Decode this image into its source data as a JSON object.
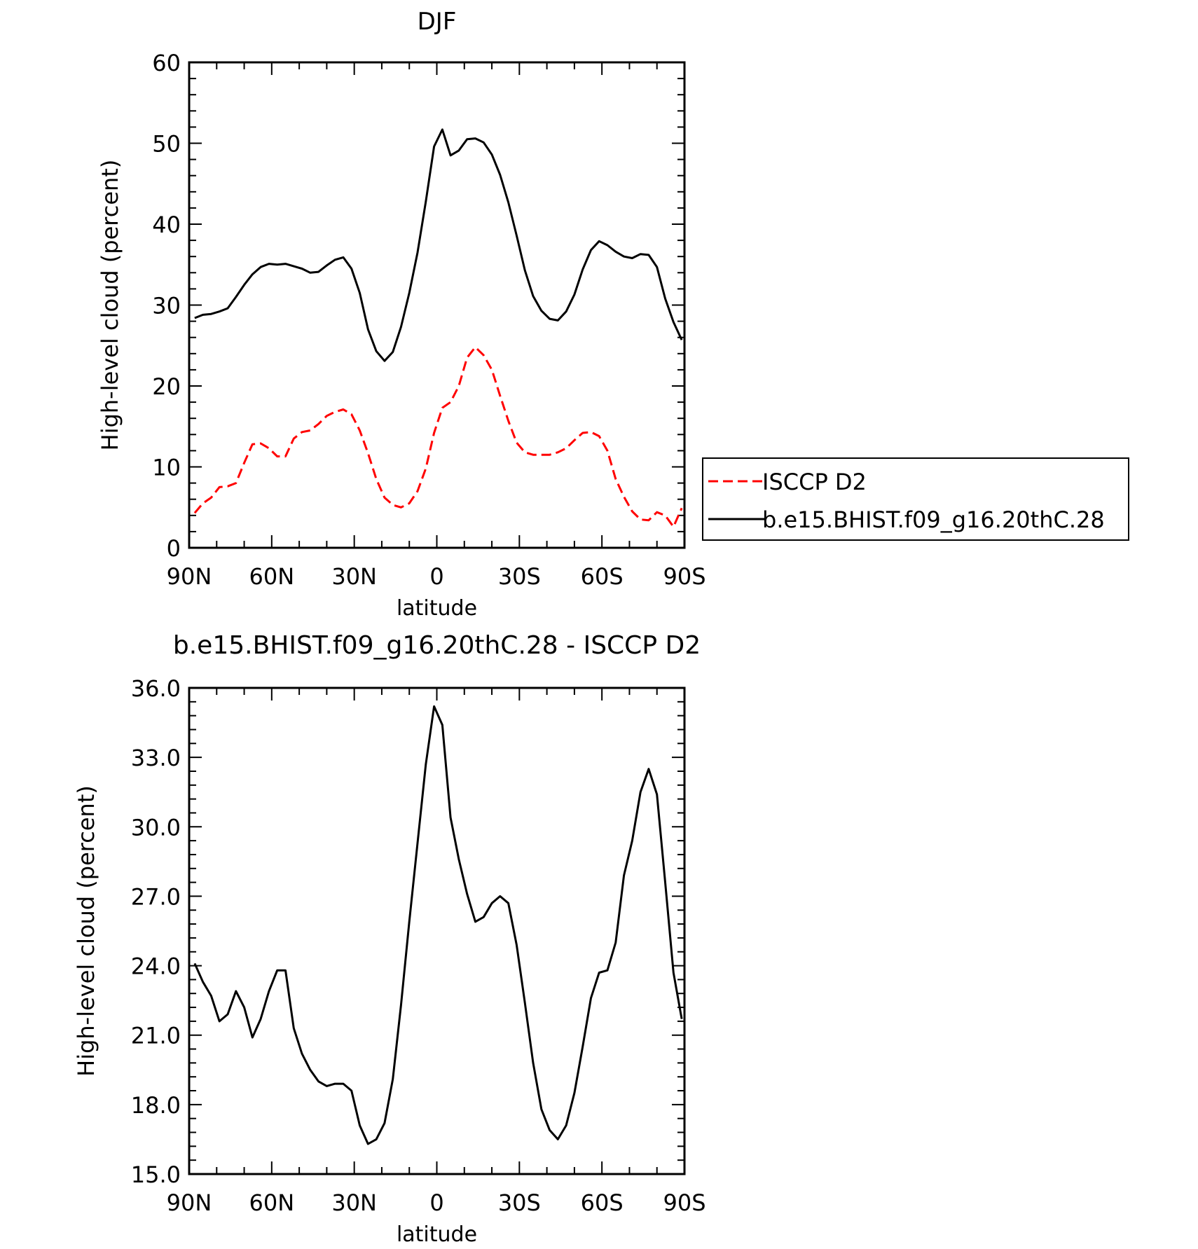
{
  "chart_data": [
    {
      "type": "line",
      "title": "DJF",
      "xlabel": "latitude",
      "ylabel": "High-level cloud (percent)",
      "xlim": [
        90,
        -90
      ],
      "ylim": [
        0,
        60
      ],
      "yticks": [
        0,
        10,
        20,
        30,
        40,
        50,
        60
      ],
      "ytick_labels": [
        "0",
        "10",
        "20",
        "30",
        "40",
        "50",
        "60"
      ],
      "xticks": [
        90,
        60,
        30,
        0,
        -30,
        -60,
        -90
      ],
      "xtick_labels": [
        "90N",
        "60N",
        "30N",
        "0",
        "30S",
        "60S",
        "90S"
      ],
      "grid": false,
      "legend_position": "right",
      "series": [
        {
          "name": "ISCCP D2",
          "color": "#ff0000",
          "dash": "dashed",
          "x": [
            88,
            85,
            82,
            79,
            76,
            73,
            70,
            67,
            64,
            61,
            58,
            55,
            52,
            49,
            46,
            43,
            40,
            37,
            34,
            31,
            28,
            25,
            22,
            19,
            16,
            13,
            10,
            7,
            4,
            1,
            -2,
            -5,
            -8,
            -11,
            -14,
            -17,
            -20,
            -23,
            -26,
            -29,
            -32,
            -35,
            -38,
            -41,
            -44,
            -47,
            -50,
            -53,
            -56,
            -59,
            -62,
            -65,
            -68,
            -71,
            -74,
            -77,
            -80,
            -83,
            -86,
            -89
          ],
          "y": [
            4.3,
            5.5,
            6.2,
            7.5,
            7.6,
            8.0,
            10.5,
            12.8,
            12.9,
            12.3,
            11.3,
            11.3,
            13.5,
            14.3,
            14.5,
            15.3,
            16.3,
            16.8,
            17.1,
            16.5,
            14.5,
            11.7,
            8.5,
            6.2,
            5.3,
            5.0,
            5.5,
            7.0,
            9.8,
            14.2,
            17.3,
            18.0,
            20.0,
            23.5,
            24.8,
            23.8,
            22.0,
            18.8,
            15.7,
            13.0,
            11.8,
            11.5,
            11.5,
            11.5,
            11.8,
            12.3,
            13.3,
            14.2,
            14.3,
            13.8,
            12.0,
            8.5,
            6.3,
            4.5,
            3.5,
            3.4,
            4.4,
            4.0,
            2.6,
            4.9
          ]
        },
        {
          "name": "b.e15.BHIST.f09_g16.20thC.28",
          "color": "#000000",
          "dash": "solid",
          "x": [
            88,
            85,
            82,
            79,
            76,
            73,
            70,
            67,
            64,
            61,
            58,
            55,
            52,
            49,
            46,
            43,
            40,
            37,
            34,
            31,
            28,
            25,
            22,
            19,
            16,
            13,
            10,
            7,
            4,
            1,
            -2,
            -5,
            -8,
            -11,
            -14,
            -17,
            -20,
            -23,
            -26,
            -29,
            -32,
            -35,
            -38,
            -41,
            -44,
            -47,
            -50,
            -53,
            -56,
            -59,
            -62,
            -65,
            -68,
            -71,
            -74,
            -77,
            -80,
            -83,
            -86,
            -89
          ],
          "y": [
            28.4,
            28.8,
            28.9,
            29.2,
            29.6,
            31.0,
            32.5,
            33.8,
            34.7,
            35.1,
            35.0,
            35.1,
            34.8,
            34.5,
            34.0,
            34.1,
            34.9,
            35.6,
            35.9,
            34.5,
            31.5,
            27.0,
            24.3,
            23.1,
            24.2,
            27.3,
            31.5,
            36.5,
            42.8,
            49.6,
            51.7,
            48.5,
            49.1,
            50.5,
            50.6,
            50.1,
            48.6,
            46.1,
            42.7,
            38.6,
            34.3,
            31.1,
            29.3,
            28.3,
            28.1,
            29.2,
            31.3,
            34.4,
            36.8,
            37.9,
            37.4,
            36.6,
            36.0,
            35.8,
            36.3,
            36.2,
            34.7,
            30.8,
            27.9,
            25.7
          ]
        }
      ]
    },
    {
      "type": "line",
      "title": "b.e15.BHIST.f09_g16.20thC.28 - ISCCP D2",
      "xlabel": "latitude",
      "ylabel": "High-level cloud (percent)",
      "xlim": [
        90,
        -90
      ],
      "ylim": [
        15,
        36
      ],
      "yticks": [
        15,
        18,
        21,
        24,
        27,
        30,
        33,
        36
      ],
      "ytick_labels": [
        "15.0",
        "18.0",
        "21.0",
        "24.0",
        "27.0",
        "30.0",
        "33.0",
        "36.0"
      ],
      "xticks": [
        90,
        60,
        30,
        0,
        -30,
        -60,
        -90
      ],
      "xtick_labels": [
        "90N",
        "60N",
        "30N",
        "0",
        "30S",
        "60S",
        "90S"
      ],
      "grid": false,
      "series": [
        {
          "color": "#000000",
          "dash": "solid",
          "x": [
            88,
            85,
            82,
            79,
            76,
            73,
            70,
            67,
            64,
            61,
            58,
            55,
            52,
            49,
            46,
            43,
            40,
            37,
            34,
            31,
            28,
            25,
            22,
            19,
            16,
            13,
            10,
            7,
            4,
            1,
            -2,
            -5,
            -8,
            -11,
            -14,
            -17,
            -20,
            -23,
            -26,
            -29,
            -32,
            -35,
            -38,
            -41,
            -44,
            -47,
            -50,
            -53,
            -56,
            -59,
            -62,
            -65,
            -68,
            -71,
            -74,
            -77,
            -80,
            -83,
            -86,
            -89
          ],
          "y": [
            24.1,
            23.3,
            22.7,
            21.6,
            21.9,
            22.9,
            22.2,
            20.9,
            21.7,
            22.9,
            23.8,
            23.8,
            21.3,
            20.2,
            19.5,
            19.0,
            18.8,
            18.9,
            18.9,
            18.6,
            17.1,
            16.3,
            16.5,
            17.2,
            19.1,
            22.3,
            25.9,
            29.3,
            32.7,
            35.2,
            34.4,
            30.4,
            28.6,
            27.1,
            25.9,
            26.1,
            26.7,
            27.0,
            26.7,
            24.9,
            22.4,
            19.8,
            17.8,
            16.9,
            16.5,
            17.1,
            18.5,
            20.5,
            22.6,
            23.7,
            23.8,
            25.0,
            27.9,
            29.4,
            31.5,
            32.5,
            31.4,
            27.6,
            23.7,
            21.7
          ]
        }
      ]
    }
  ]
}
